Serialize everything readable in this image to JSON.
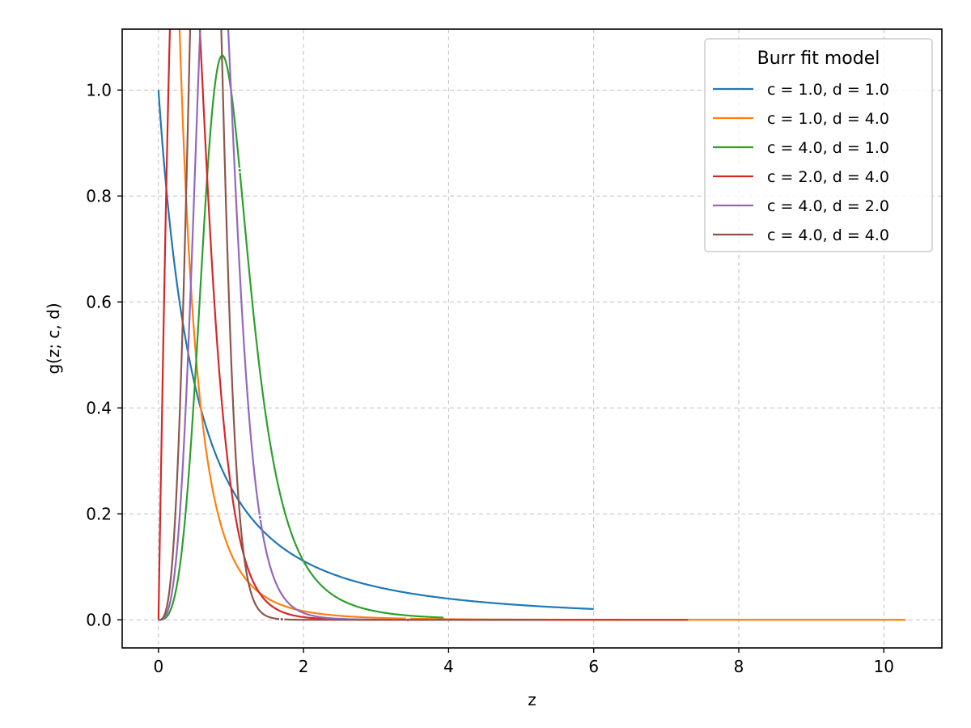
{
  "chart_data": {
    "type": "line",
    "title": "",
    "xlabel": "z",
    "ylabel": "g(z; c, d)",
    "xlim": [
      -0.5,
      10.8
    ],
    "ylim": [
      -0.053,
      1.115
    ],
    "x_ticks": [
      0,
      2,
      4,
      6,
      8,
      10
    ],
    "x_tick_labels": [
      "0",
      "2",
      "4",
      "6",
      "8",
      "10"
    ],
    "y_ticks": [
      0.0,
      0.2,
      0.4,
      0.6,
      0.8,
      1.0
    ],
    "y_tick_labels": [
      "0.0",
      "0.2",
      "0.4",
      "0.6",
      "0.8",
      "1.0"
    ],
    "grid": true,
    "legend": {
      "title": "Burr fit model",
      "placement": "top-right"
    },
    "series": [
      {
        "name": "c = 1.0, d = 1.0",
        "c": 1.0,
        "d": 1.0,
        "x_range": [
          0.0,
          6.0
        ],
        "color": "#1f77b4"
      },
      {
        "name": "c = 1.0, d = 4.0",
        "c": 1.0,
        "d": 4.0,
        "x_range": [
          0.28,
          10.3
        ],
        "color": "#ff7f0e"
      },
      {
        "name": "c = 4.0, d = 1.0",
        "c": 4.0,
        "d": 1.0,
        "x_range": [
          0.0,
          3.93
        ],
        "color": "#2ca02c",
        "marker_x": 1.12
      },
      {
        "name": "c = 2.0, d = 4.0",
        "c": 2.0,
        "d": 4.0,
        "x_range": [
          0.0,
          7.3
        ],
        "color": "#d62728",
        "marker_x": 3.44
      },
      {
        "name": "c = 4.0, d = 2.0",
        "c": 4.0,
        "d": 2.0,
        "x_range": [
          0.0,
          4.55
        ],
        "color": "#9467bd",
        "marker_x": 1.4
      },
      {
        "name": "c = 4.0, d = 4.0",
        "c": 4.0,
        "d": 4.0,
        "x_range": [
          0.0,
          5.3
        ],
        "color": "#8c564b",
        "marker_x": 1.7
      }
    ]
  }
}
